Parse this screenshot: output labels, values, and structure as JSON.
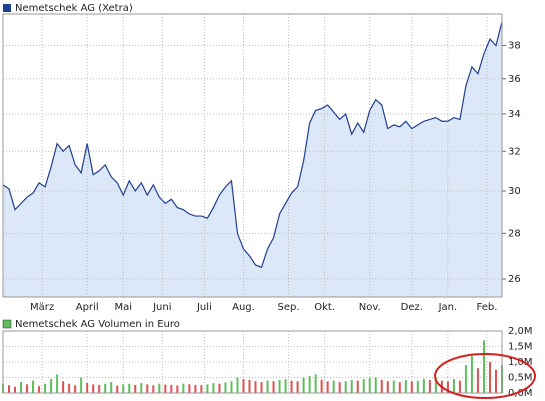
{
  "chart_data": [
    {
      "type": "line",
      "title": "Nemetschek AG (Xetra)",
      "color": "#1f3f8f",
      "fill": "#dce8f8",
      "log_scale": true,
      "grid": true,
      "xlim": [
        0,
        83
      ],
      "xticks": [
        {
          "value": 6.5,
          "label": "März"
        },
        {
          "value": 14,
          "label": "April"
        },
        {
          "value": 20,
          "label": "Mai"
        },
        {
          "value": 26.5,
          "label": "Juni"
        },
        {
          "value": 33.5,
          "label": "Juli"
        },
        {
          "value": 40,
          "label": "Aug."
        },
        {
          "value": 47.5,
          "label": "Sep."
        },
        {
          "value": 53.5,
          "label": "Okt."
        },
        {
          "value": 61,
          "label": "Nov."
        },
        {
          "value": 68,
          "label": "Dez."
        },
        {
          "value": 74,
          "label": "Jan."
        },
        {
          "value": 80.5,
          "label": "Feb."
        }
      ],
      "ylim": [
        25.25,
        40
      ],
      "yticks": [
        26,
        28,
        30,
        32,
        34,
        36,
        38
      ],
      "values": [
        30.3,
        30.1,
        29.1,
        29.4,
        29.7,
        29.9,
        30.4,
        30.2,
        31.2,
        32.4,
        32.0,
        32.3,
        31.3,
        30.9,
        32.4,
        30.8,
        31.0,
        31.3,
        30.7,
        30.4,
        29.8,
        30.5,
        30.0,
        30.4,
        29.8,
        30.3,
        29.7,
        29.4,
        29.6,
        29.2,
        29.1,
        28.9,
        28.8,
        28.8,
        28.7,
        29.2,
        29.8,
        30.2,
        30.5,
        28.0,
        27.3,
        27.0,
        26.6,
        26.5,
        27.3,
        27.8,
        28.9,
        29.4,
        29.9,
        30.2,
        31.5,
        33.5,
        34.2,
        34.3,
        34.5,
        34.1,
        33.7,
        34.0,
        32.9,
        33.5,
        33.0,
        34.2,
        34.8,
        34.5,
        33.2,
        33.4,
        33.3,
        33.6,
        33.2,
        33.4,
        33.6,
        33.7,
        33.8,
        33.6,
        33.6,
        33.8,
        33.7,
        35.6,
        36.7,
        36.3,
        37.5,
        38.4,
        38.0,
        39.5
      ]
    },
    {
      "type": "bar",
      "title": "Nemetschek AG Volumen in Euro",
      "color": "#5cbf5c",
      "up_color": "#5cbf5c",
      "down_color": "#e05050",
      "xlim": [
        0,
        83
      ],
      "ylim": [
        0,
        2000000
      ],
      "yticks": [
        {
          "value": 0,
          "label": "0,0M"
        },
        {
          "value": 500000,
          "label": "0,5M"
        },
        {
          "value": 1000000,
          "label": "1,0M"
        },
        {
          "value": 1500000,
          "label": "1,5M"
        },
        {
          "value": 2000000,
          "label": "2,0M"
        }
      ],
      "values": [
        300000,
        250000,
        200000,
        350000,
        280000,
        400000,
        220000,
        300000,
        450000,
        600000,
        380000,
        300000,
        250000,
        500000,
        320000,
        280000,
        260000,
        300000,
        350000,
        240000,
        280000,
        300000,
        260000,
        320000,
        280000,
        250000,
        300000,
        270000,
        260000,
        240000,
        300000,
        280000,
        260000,
        250000,
        280000,
        320000,
        300000,
        340000,
        380000,
        500000,
        450000,
        420000,
        380000,
        350000,
        400000,
        380000,
        420000,
        450000,
        400000,
        380000,
        500000,
        550000,
        600000,
        420000,
        380000,
        400000,
        350000,
        380000,
        420000,
        400000,
        450000,
        480000,
        500000,
        420000,
        380000,
        400000,
        350000,
        420000,
        380000,
        400000,
        450000,
        420000,
        500000,
        400000,
        380000,
        450000,
        400000,
        900000,
        1200000,
        800000,
        1700000,
        1000000,
        750000,
        900000
      ]
    }
  ]
}
